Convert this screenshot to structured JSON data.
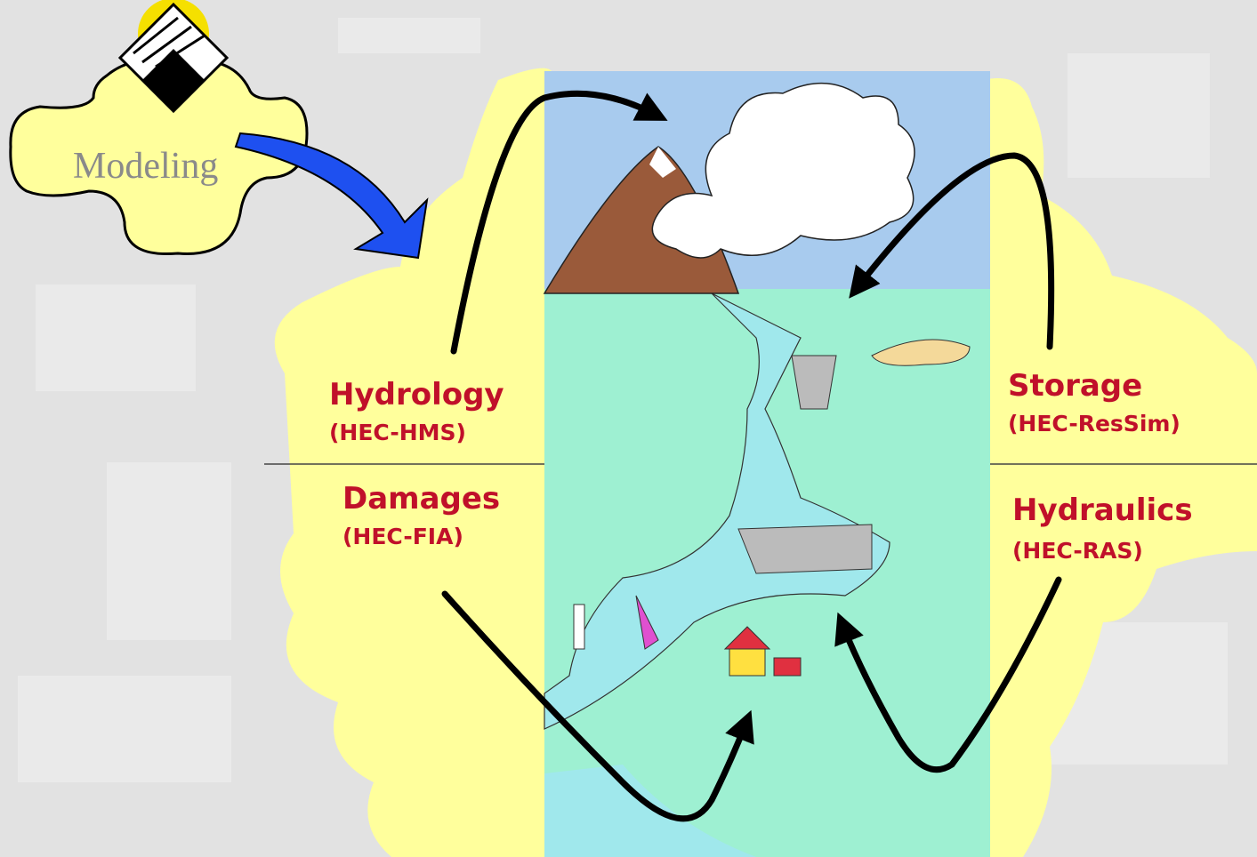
{
  "badge": {
    "label": "Modeling"
  },
  "sections": [
    {
      "title": "Hydrology",
      "subtitle": "(HEC-HMS)"
    },
    {
      "title": "Damages",
      "subtitle": "(HEC-FIA)"
    },
    {
      "title": "Storage",
      "subtitle": "(HEC-ResSim)"
    },
    {
      "title": "Hydraulics",
      "subtitle": "(HEC-RAS)"
    }
  ]
}
